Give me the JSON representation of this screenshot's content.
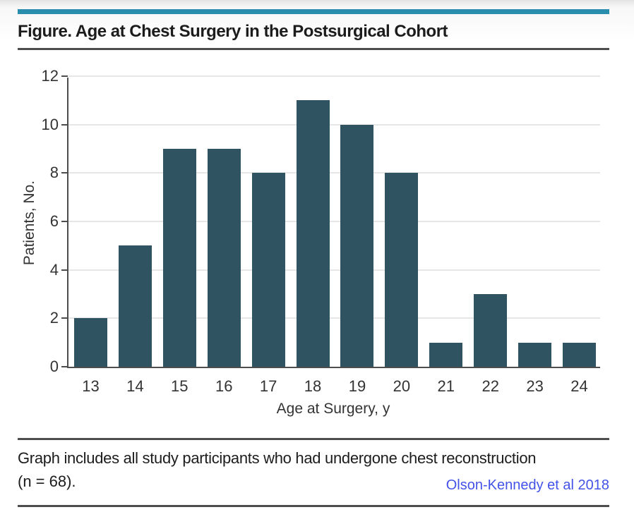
{
  "figure": {
    "title": "Figure. Age at Chest Surgery in the Postsurgical Cohort",
    "caption_line1": "Graph includes all study participants who had undergone chest reconstruction",
    "caption_line2": "(n = 68).",
    "attribution": "Olson-Kennedy et al 2018"
  },
  "chart_data": {
    "type": "bar",
    "title": "Figure. Age at Chest Surgery in the Postsurgical Cohort",
    "categories": [
      "13",
      "14",
      "15",
      "16",
      "17",
      "18",
      "19",
      "20",
      "21",
      "22",
      "23",
      "24"
    ],
    "values": [
      2,
      5,
      9,
      9,
      8,
      11,
      10,
      8,
      1,
      3,
      1,
      1
    ],
    "xlabel": "Age at Surgery, y",
    "ylabel": "Patients, No.",
    "ylim": [
      0,
      12
    ],
    "ytick_step": 2,
    "grid": true,
    "legend_position": "none",
    "bar_color": "#2f5361"
  },
  "colors": {
    "accent_bar": "#2a8dad",
    "rule": "#4d4d4d",
    "grid": "#e6e6e6",
    "axis": "#4d4d4d",
    "text": "#1c1c1c",
    "tick_text": "#333333",
    "attribution": "#4353e8",
    "bar": "#2f5361"
  }
}
